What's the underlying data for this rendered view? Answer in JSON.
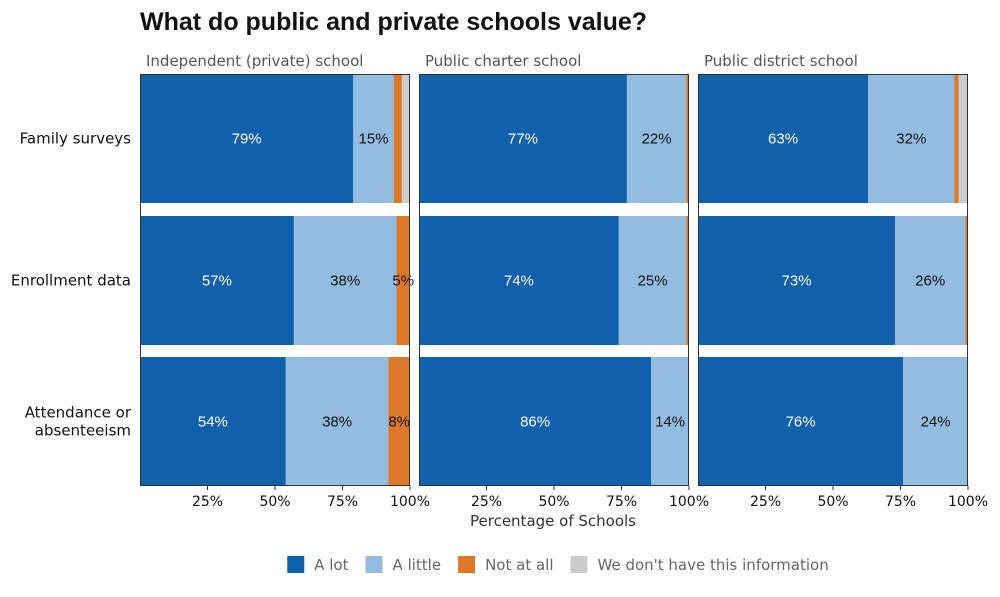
{
  "chart_data": {
    "type": "bar",
    "orientation": "horizontal-stacked",
    "title": "What do public and private schools value?",
    "xlabel": "Percentage of Schools",
    "xlim": [
      0,
      100
    ],
    "x_ticks": [
      "25%",
      "50%",
      "75%",
      "100%"
    ],
    "categories": [
      "Family surveys",
      "Enrollment data",
      "Attendance or\nabsenteeism"
    ],
    "colors": {
      "A lot": "#1060ac",
      "A little": "#93bde0",
      "Not at all": "#de7829",
      "We don't have this information": "#cccccc"
    },
    "legend": {
      "position": "bottom",
      "items": [
        "A lot",
        "A little",
        "Not at all",
        "We don't have this information"
      ]
    },
    "facets": [
      {
        "name": "Independent (private) school",
        "bars": [
          {
            "category": "Family surveys",
            "values": [
              79,
              15,
              3,
              3
            ],
            "labels": [
              "79%",
              "15%",
              "",
              ""
            ]
          },
          {
            "category": "Enrollment data",
            "values": [
              57,
              38,
              5,
              0
            ],
            "labels": [
              "57%",
              "38%",
              "5%",
              ""
            ]
          },
          {
            "category": "Attendance or\nabsenteeism",
            "values": [
              54,
              38,
              8,
              0
            ],
            "labels": [
              "54%",
              "38%",
              "8%",
              ""
            ]
          }
        ]
      },
      {
        "name": "Public charter school",
        "bars": [
          {
            "category": "Family surveys",
            "values": [
              77,
              22,
              1,
              0
            ],
            "labels": [
              "77%",
              "22%",
              "",
              ""
            ]
          },
          {
            "category": "Enrollment data",
            "values": [
              74,
              25,
              1,
              0
            ],
            "labels": [
              "74%",
              "25%",
              "",
              ""
            ]
          },
          {
            "category": "Attendance or\nabsenteeism",
            "values": [
              86,
              14,
              0,
              0
            ],
            "labels": [
              "86%",
              "14%",
              "",
              ""
            ]
          }
        ]
      },
      {
        "name": "Public district school",
        "bars": [
          {
            "category": "Family surveys",
            "values": [
              63,
              32,
              1.5,
              3.5
            ],
            "labels": [
              "63%",
              "32%",
              "",
              ""
            ]
          },
          {
            "category": "Enrollment data",
            "values": [
              73,
              26,
              1,
              0
            ],
            "labels": [
              "73%",
              "26%",
              "",
              ""
            ]
          },
          {
            "category": "Attendance or\nabsenteeism",
            "values": [
              76,
              24,
              0,
              0
            ],
            "labels": [
              "76%",
              "24%",
              "",
              ""
            ]
          }
        ]
      }
    ]
  }
}
